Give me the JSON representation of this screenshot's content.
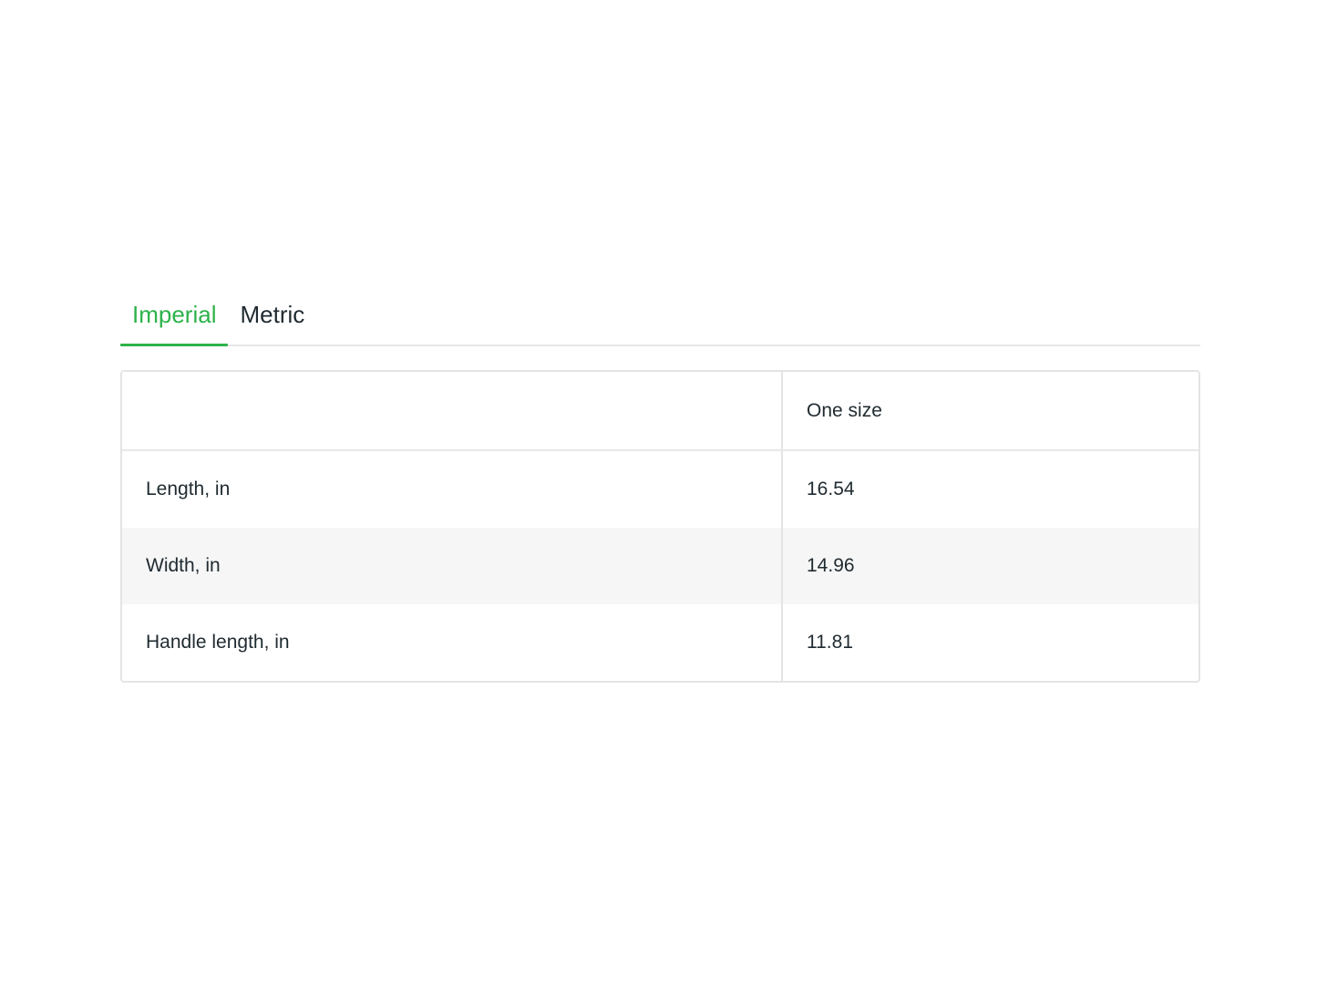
{
  "accent_color": "#2db24a",
  "tabs": [
    {
      "label": "Imperial",
      "active": true
    },
    {
      "label": "Metric",
      "active": false
    }
  ],
  "table": {
    "header": [
      "",
      "One size"
    ],
    "rows": [
      {
        "label": "Length, in",
        "value": "16.54"
      },
      {
        "label": "Width, in",
        "value": "14.96"
      },
      {
        "label": "Handle length, in",
        "value": "11.81"
      }
    ]
  }
}
